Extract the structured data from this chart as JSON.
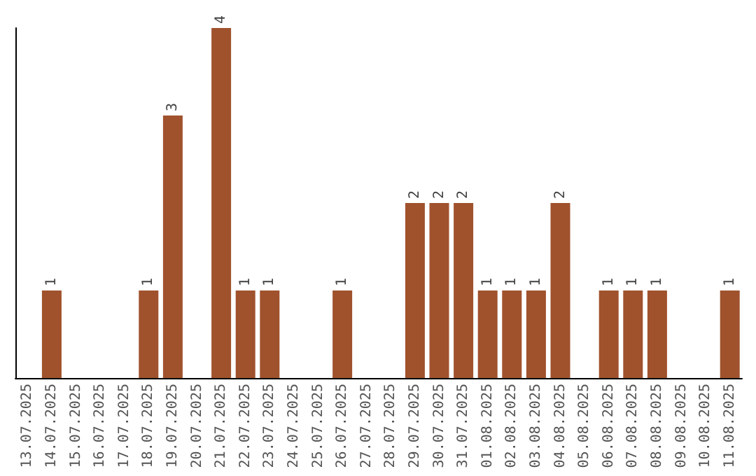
{
  "chart_data": {
    "type": "bar",
    "categories": [
      "13.07.2025",
      "14.07.2025",
      "15.07.2025",
      "16.07.2025",
      "17.07.2025",
      "18.07.2025",
      "19.07.2025",
      "20.07.2025",
      "21.07.2025",
      "22.07.2025",
      "23.07.2025",
      "24.07.2025",
      "25.07.2025",
      "26.07.2025",
      "27.07.2025",
      "28.07.2025",
      "29.07.2025",
      "30.07.2025",
      "31.07.2025",
      "01.08.2025",
      "02.08.2025",
      "03.08.2025",
      "04.08.2025",
      "05.08.2025",
      "06.08.2025",
      "07.08.2025",
      "08.08.2025",
      "09.08.2025",
      "10.08.2025",
      "11.08.2025"
    ],
    "values": [
      null,
      1,
      null,
      null,
      null,
      1,
      3,
      null,
      4,
      1,
      1,
      null,
      null,
      1,
      null,
      null,
      2,
      2,
      2,
      1,
      1,
      1,
      2,
      null,
      1,
      1,
      1,
      null,
      null,
      1
    ],
    "color": "#a0522d",
    "data_labels": true,
    "tick_labels": "x"
  }
}
